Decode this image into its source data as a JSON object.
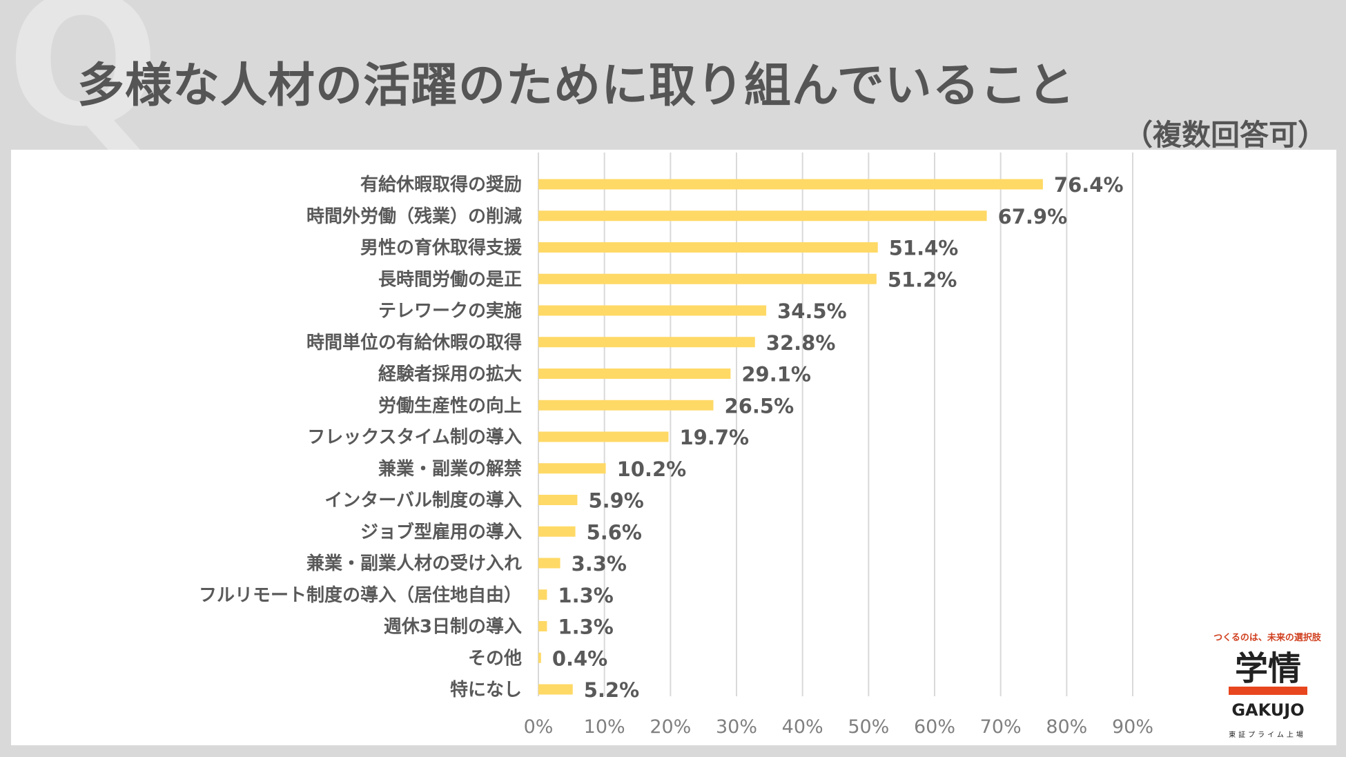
{
  "header": {
    "title": "多様な人材の活躍のために取り組んでいること",
    "subtitle": "（複数回答可）",
    "q_mark": "Q"
  },
  "colors": {
    "bar": "#ffd966",
    "grid": "#d9d9d9",
    "text": "#595959",
    "background": "#d9d9d9"
  },
  "chart_data": {
    "type": "bar",
    "orientation": "horizontal",
    "title": "多様な人材の活躍のために取り組んでいること",
    "categories": [
      "有給休暇取得の奨励",
      "時間外労働（残業）の削減",
      "男性の育休取得支援",
      "長時間労働の是正",
      "テレワークの実施",
      "時間単位の有給休暇の取得",
      "経験者採用の拡大",
      "労働生産性の向上",
      "フレックスタイム制の導入",
      "兼業・副業の解禁",
      "インターバル制度の導入",
      "ジョブ型雇用の導入",
      "兼業・副業人材の受け入れ",
      "フルリモート制度の導入（居住地自由）",
      "週休3日制の導入",
      "その他",
      "特になし"
    ],
    "values": [
      76.4,
      67.9,
      51.4,
      51.2,
      34.5,
      32.8,
      29.1,
      26.5,
      19.7,
      10.2,
      5.9,
      5.6,
      3.3,
      1.3,
      1.3,
      0.4,
      5.2
    ],
    "value_labels": [
      "76.4%",
      "67.9%",
      "51.4%",
      "51.2%",
      "34.5%",
      "32.8%",
      "29.1%",
      "26.5%",
      "19.7%",
      "10.2%",
      "5.9%",
      "5.6%",
      "3.3%",
      "1.3%",
      "1.3%",
      "0.4%",
      "5.2%"
    ],
    "xlim": [
      0,
      90
    ],
    "xticks": [
      0,
      10,
      20,
      30,
      40,
      50,
      60,
      70,
      80,
      90
    ],
    "xtick_labels": [
      "0%",
      "10%",
      "20%",
      "30%",
      "40%",
      "50%",
      "60%",
      "70%",
      "80%",
      "90%"
    ],
    "grid": true,
    "legend": "none"
  },
  "logo": {
    "tagline": "つくるのは、未来の選択肢",
    "mark": "学情",
    "name": "GAKUJO",
    "market": "東証プライム上場"
  }
}
